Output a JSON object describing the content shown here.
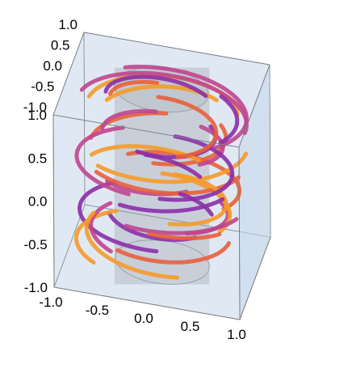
{
  "chart_data": {
    "type": "3d-stream",
    "title": "",
    "xlabel": "",
    "ylabel": "",
    "zlabel": "",
    "xlim": [
      -1.0,
      1.0
    ],
    "ylim": [
      -1.0,
      1.0
    ],
    "zlim": [
      -1.0,
      1.0
    ],
    "x_ticks": [
      "-1.0",
      "-0.5",
      "0.0",
      "0.5",
      "1.0"
    ],
    "y_ticks": [
      "-1.0",
      "-0.5",
      "0.0",
      "0.5",
      "1.0"
    ],
    "z_ticks": [
      "-1.0",
      "-0.5",
      "0.0",
      "0.5",
      "1.0"
    ],
    "field": "vortex around a vertical cylinder",
    "cylinder": {
      "axis": "z",
      "radius": 0.5,
      "z_range": [
        -1.0,
        1.0
      ]
    },
    "streamline_radius_range": [
      0.55,
      0.95
    ],
    "color_scale": [
      "#8b2fa8",
      "#c0458f",
      "#e8603a",
      "#f59a2a"
    ],
    "box_face_color": "#c6d7ea",
    "grid": false,
    "legend": "none"
  }
}
